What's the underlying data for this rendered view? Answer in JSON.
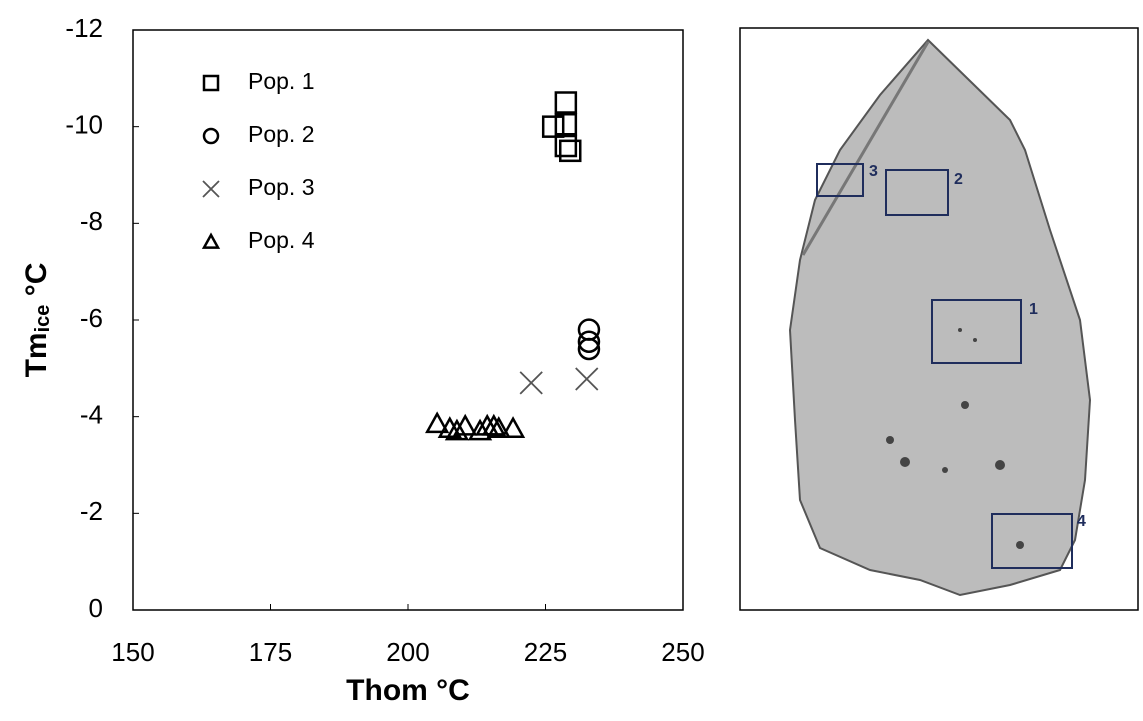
{
  "chart_data": {
    "type": "scatter",
    "x_label": "Thom °C",
    "y_label": {
      "main": "Tm",
      "sub": "ice",
      "unit": " °C"
    },
    "xlim": [
      150,
      250
    ],
    "xticks": [
      150,
      175,
      200,
      225,
      250
    ],
    "ylim": [
      0,
      -12
    ],
    "yticks": [
      0,
      -2,
      -4,
      -6,
      -8,
      -10,
      -12
    ],
    "grid": false,
    "legend": "upper left",
    "series": [
      {
        "name": "Pop. 1",
        "marker": "square",
        "color": "#000000",
        "x": [
          226.4,
          228.7,
          228.7,
          228.7,
          229.5
        ],
        "values": [
          -10.0,
          -10.5,
          -10.05,
          -9.6,
          -9.5
        ]
      },
      {
        "name": "Pop. 2",
        "marker": "circle",
        "color": "#000000",
        "x": [
          232.9,
          232.9,
          232.9
        ],
        "values": [
          -5.8,
          -5.55,
          -5.4
        ]
      },
      {
        "name": "Pop. 3",
        "marker": "x",
        "color": "#555555",
        "x": [
          222.4,
          232.5
        ],
        "values": [
          -4.7,
          -4.78
        ]
      },
      {
        "name": "Pop. 4",
        "marker": "triangle",
        "color": "#000000",
        "x": [
          205.3,
          207.6,
          208.9,
          210.4,
          213.1,
          214.4,
          215.6,
          216.5,
          219.1
        ],
        "values": [
          -3.85,
          -3.75,
          -3.7,
          -3.8,
          -3.7,
          -3.8,
          -3.8,
          -3.75,
          -3.75
        ]
      }
    ]
  },
  "image_panel": {
    "box_labels": [
      "1",
      "2",
      "3",
      "4"
    ]
  }
}
